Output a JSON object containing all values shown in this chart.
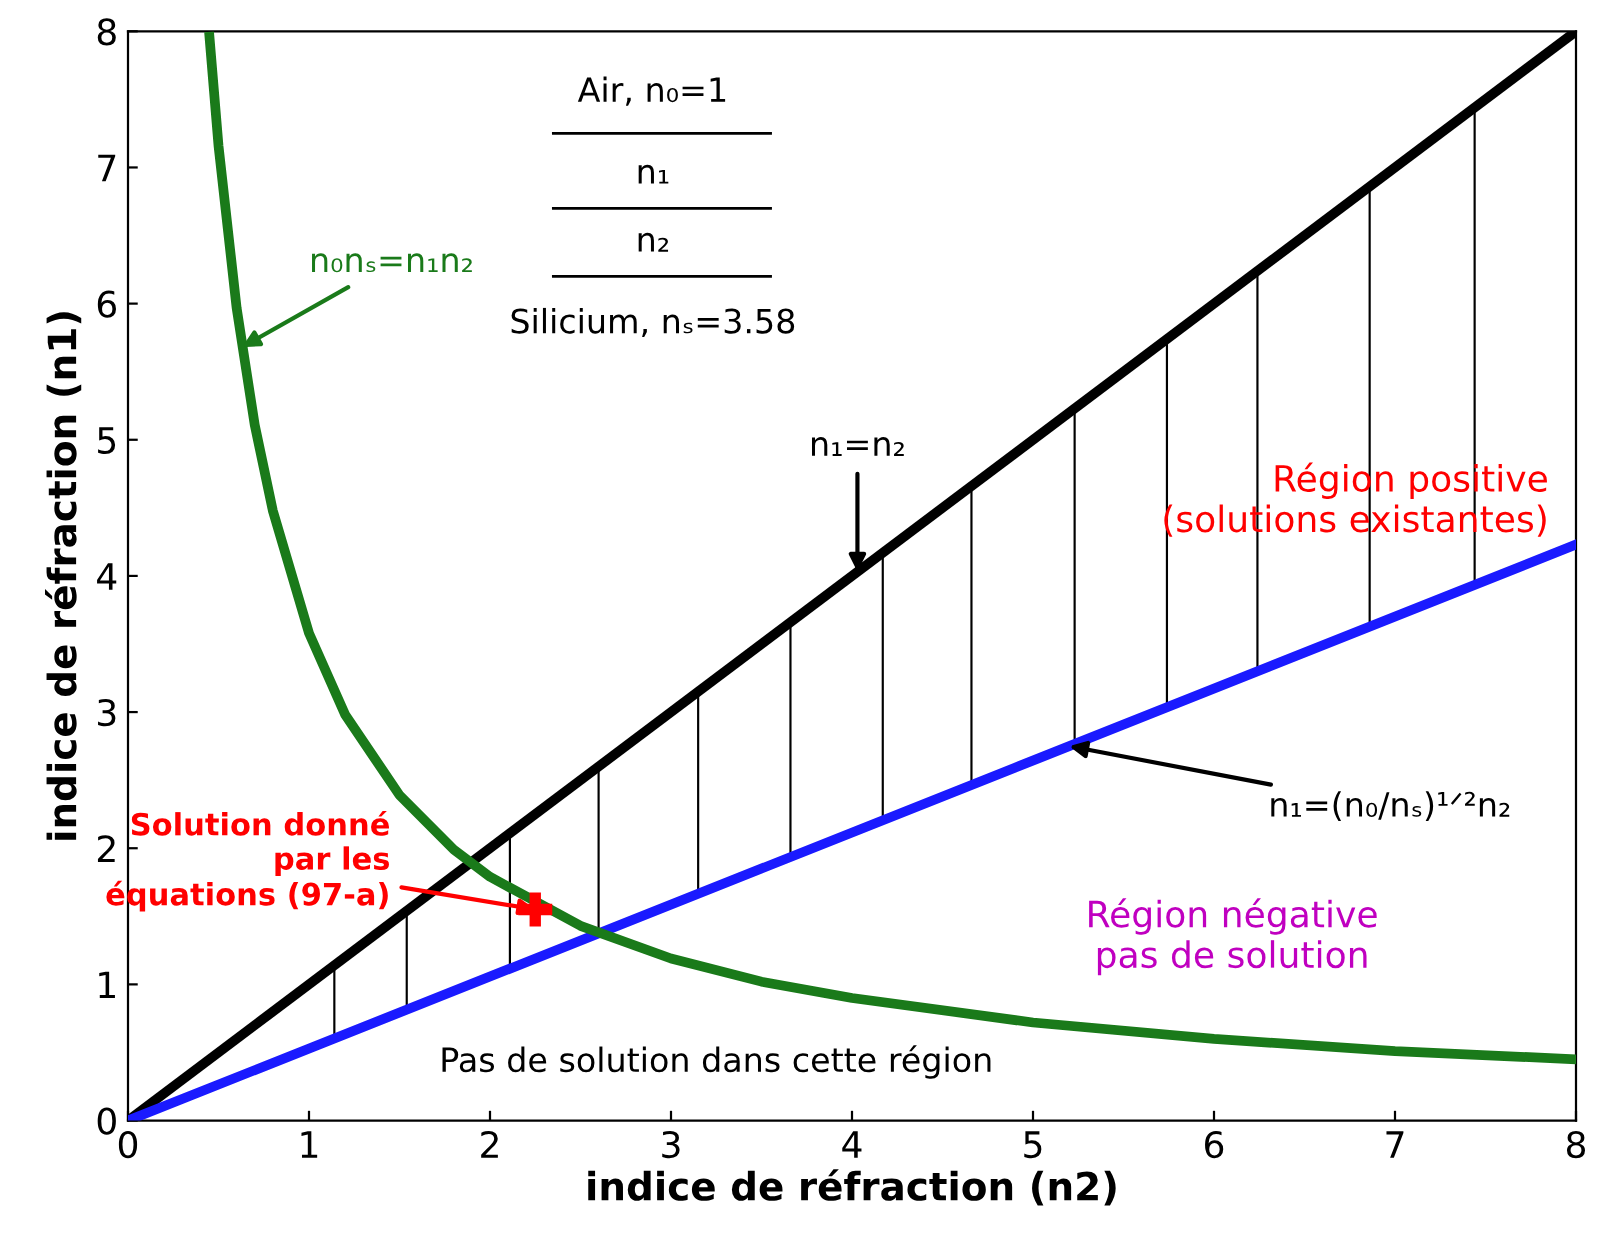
{
  "chart_data": {
    "type": "line",
    "xlabel": "indice de réfraction (n2)",
    "ylabel": "indice de réfraction (n1)",
    "xlim": [
      0,
      8
    ],
    "ylim": [
      0,
      8
    ],
    "xticks": [
      0,
      1,
      2,
      3,
      4,
      5,
      6,
      7,
      8
    ],
    "yticks": [
      0,
      1,
      2,
      3,
      4,
      5,
      6,
      7,
      8
    ],
    "grid": false,
    "legend": false,
    "series": [
      {
        "type": "bar",
        "color": "#000000",
        "x": [
          1.14,
          1.54,
          2.11,
          2.6,
          3.15,
          3.66,
          4.17,
          4.66,
          5.23,
          5.74,
          6.24,
          6.86,
          7.44
        ],
        "base": [
          0.6,
          0.81,
          1.12,
          1.37,
          1.66,
          1.93,
          2.2,
          2.46,
          2.76,
          3.03,
          3.3,
          3.63,
          3.93
        ],
        "values": [
          0.54,
          0.73,
          0.99,
          1.23,
          1.49,
          1.73,
          1.97,
          2.2,
          2.47,
          2.71,
          2.94,
          3.23,
          3.51
        ]
      },
      {
        "color": "#000000",
        "x": [
          0,
          8
        ],
        "values": [
          0,
          8
        ]
      },
      {
        "color": "#1a1aff",
        "x": [
          0,
          8
        ],
        "values": [
          0,
          4.23
        ]
      },
      {
        "color": "#1a7a1a",
        "x": [
          0.45,
          0.5,
          0.6,
          0.7,
          0.8,
          1,
          1.2,
          1.5,
          1.8,
          2,
          2.5,
          3,
          3.5,
          4,
          5,
          6,
          7,
          8
        ],
        "values": [
          7.96,
          7.16,
          5.97,
          5.11,
          4.48,
          3.58,
          2.98,
          2.39,
          1.99,
          1.79,
          1.43,
          1.19,
          1.02,
          0.9,
          0.72,
          0.6,
          0.51,
          0.45
        ]
      },
      {
        "type": "scatter",
        "color": "#ff0000",
        "marker": "cross",
        "x": [
          2.25
        ],
        "values": [
          1.55
        ]
      }
    ],
    "annotations": [
      {
        "text": "Solution donné\npar les\néquations (97-a)",
        "x": 2.25,
        "y": 1.55
      },
      {
        "text": "n₁=n₂",
        "x": 4.03,
        "y": 4.03
      },
      {
        "text": "n₀nₛ=n₁n₂",
        "x": 0.63,
        "y": 5.68
      },
      {
        "text": "n₁=(n₀/nₛ)¹ᐟ²n₂",
        "x": 5.2,
        "y": 2.75
      },
      "Région positive\n(solutions existantes)",
      "Région négative\npas de solution",
      "Pas de solution dans cette région",
      "Air, n₀=1",
      "n₁",
      "n₂",
      "Silicium, nₛ=3.58"
    ]
  }
}
